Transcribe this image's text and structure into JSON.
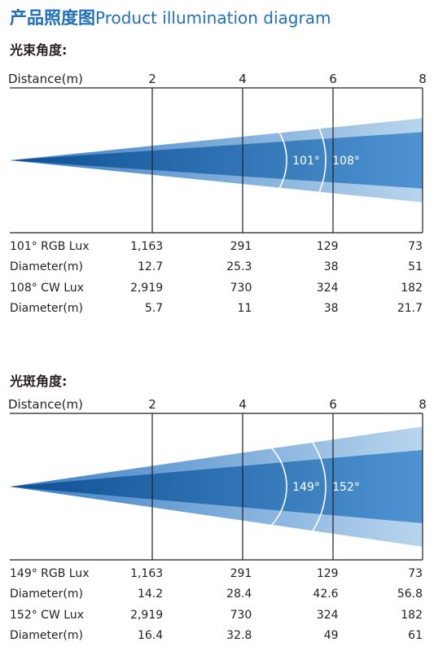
{
  "title": {
    "cn": "产品照度图",
    "en": "Product illumination diagram"
  },
  "colors": {
    "accent": "#1f6fbf",
    "beam_dark": "#0d4f92",
    "beam_mid": "#3b7fc4",
    "beam_light": "#b9d5ee",
    "line": "#231f20"
  },
  "sections": [
    {
      "label": "光束角度:",
      "distance_label": "Distance(m)",
      "ticks": [
        "2",
        "4",
        "6",
        "8"
      ],
      "angle_inner": "101°",
      "angle_outer": "108°",
      "spread": {
        "inner": 0.39,
        "outer": 0.58
      },
      "rows": [
        {
          "label": "101° RGB Lux",
          "values": [
            "1,163",
            "291",
            "129",
            "73"
          ]
        },
        {
          "label": "Diameter(m)",
          "values": [
            "12.7",
            "25.3",
            "38",
            "51"
          ]
        },
        {
          "label": "108° CW Lux",
          "values": [
            "2,919",
            "730",
            "324",
            "182"
          ]
        },
        {
          "label": "Diameter(m)",
          "values": [
            "5.7",
            "11",
            "38",
            "21.7"
          ]
        }
      ]
    },
    {
      "label": "光斑角度:",
      "distance_label": "Distance(m)",
      "ticks": [
        "2",
        "4",
        "6",
        "8"
      ],
      "angle_inner": "149°",
      "angle_outer": "152°",
      "spread": {
        "inner": 0.5,
        "outer": 0.82
      },
      "rows": [
        {
          "label": "149° RGB Lux",
          "values": [
            "1,163",
            "291",
            "129",
            "73"
          ]
        },
        {
          "label": "Diameter(m)",
          "values": [
            "14.2",
            "28.4",
            "42.6",
            "56.8"
          ]
        },
        {
          "label": "152° CW Lux",
          "values": [
            "2,919",
            "730",
            "324",
            "182"
          ]
        },
        {
          "label": "Diameter(m)",
          "values": [
            "16.4",
            "32.8",
            "49",
            "61"
          ]
        }
      ]
    }
  ]
}
